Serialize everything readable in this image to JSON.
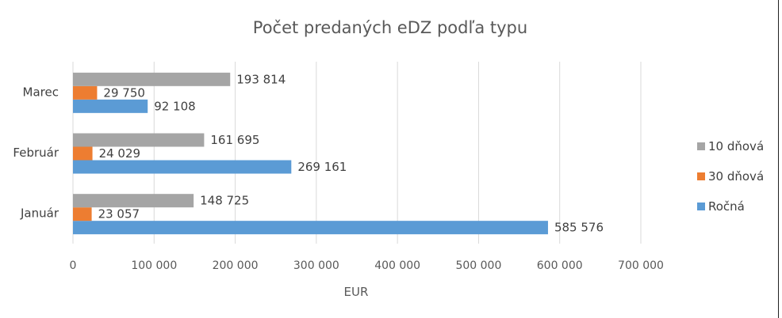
{
  "chart_data": {
    "type": "bar",
    "orientation": "horizontal",
    "title": "Počet predaných eDZ podľa typu",
    "xlabel": "EUR",
    "ylabel": "",
    "xlim": [
      0,
      700000
    ],
    "x_ticks": [
      0,
      100000,
      200000,
      300000,
      400000,
      500000,
      600000,
      700000
    ],
    "x_tick_labels": [
      "0",
      "100 000",
      "200 000",
      "300 000",
      "400 000",
      "500 000",
      "600 000",
      "700 000"
    ],
    "grid": true,
    "legend_position": "right",
    "categories": [
      "Január",
      "Február",
      "Marec"
    ],
    "series": [
      {
        "name": "Ročná",
        "color": "#5b9bd5",
        "values": [
          585576,
          269161,
          92108
        ],
        "labels": [
          "585 576",
          "269 161",
          "92 108"
        ]
      },
      {
        "name": "30 dňová",
        "color": "#ed7d31",
        "values": [
          23057,
          24029,
          29750
        ],
        "labels": [
          "23 057",
          "24 029",
          "29 750"
        ]
      },
      {
        "name": "10 dňová",
        "color": "#a5a5a5",
        "values": [
          148725,
          161695,
          193814
        ],
        "labels": [
          "148 725",
          "161 695",
          "193 814"
        ]
      }
    ],
    "legend_order": [
      "10 dňová",
      "30 dňová",
      "Ročná"
    ]
  }
}
